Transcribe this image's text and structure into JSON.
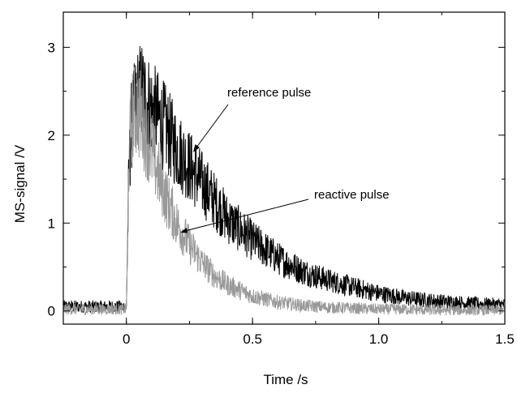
{
  "chart_data": {
    "type": "line",
    "xlabel": "Time /s",
    "ylabel": "MS-signal /V",
    "xlim": [
      -0.25,
      1.5
    ],
    "ylim": [
      -0.15,
      3.4
    ],
    "x_ticks": [
      0,
      0.5,
      1.0,
      1.5
    ],
    "x_tick_labels": [
      "0",
      "0.5",
      "1.0",
      "1.5"
    ],
    "y_ticks": [
      0,
      1,
      2,
      3
    ],
    "y_tick_labels": [
      "0",
      "1",
      "2",
      "3"
    ],
    "grid": false,
    "legend": "none",
    "series": [
      {
        "name": "reference pulse",
        "color": "#000000",
        "x": [
          -0.25,
          -0.1,
          0,
          0.01,
          0.02,
          0.04,
          0.06,
          0.08,
          0.1,
          0.15,
          0.2,
          0.25,
          0.3,
          0.35,
          0.4,
          0.5,
          0.6,
          0.7,
          0.8,
          0.9,
          1.0,
          1.1,
          1.2,
          1.3,
          1.4,
          1.5
        ],
        "y": [
          0.05,
          0.05,
          0.05,
          1.6,
          2.1,
          2.4,
          2.5,
          2.4,
          2.3,
          2.1,
          1.85,
          1.65,
          1.45,
          1.25,
          1.05,
          0.8,
          0.6,
          0.45,
          0.35,
          0.27,
          0.2,
          0.15,
          0.12,
          0.1,
          0.08,
          0.07
        ]
      },
      {
        "name": "reactive pulse",
        "color": "#999999",
        "x": [
          -0.25,
          -0.1,
          0,
          0.01,
          0.02,
          0.04,
          0.06,
          0.08,
          0.1,
          0.15,
          0.2,
          0.25,
          0.3,
          0.35,
          0.4,
          0.5,
          0.6,
          0.7,
          0.8,
          0.9,
          1.0,
          1.1,
          1.2,
          1.3,
          1.4,
          1.5
        ],
        "y": [
          0.02,
          0.02,
          0.02,
          1.7,
          2.2,
          2.3,
          2.2,
          2.0,
          1.8,
          1.35,
          1.0,
          0.75,
          0.55,
          0.4,
          0.3,
          0.17,
          0.1,
          0.06,
          0.04,
          0.03,
          0.02,
          0.02,
          0.01,
          0.01,
          0.01,
          0.01
        ]
      }
    ],
    "annotations": [
      {
        "text": "reference pulse",
        "points_to_series": "reference pulse",
        "x": 0.28,
        "y": 1.9
      },
      {
        "text": "reactive pulse",
        "points_to_series": "reactive pulse",
        "x": 0.23,
        "y": 0.95
      }
    ]
  }
}
